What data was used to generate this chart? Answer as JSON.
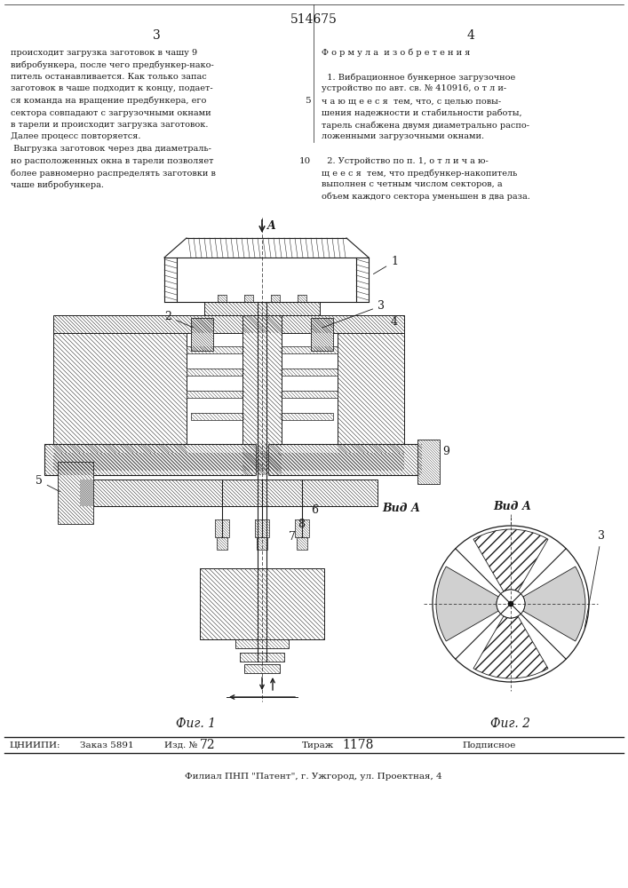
{
  "patent_number": "514675",
  "page_left": "3",
  "page_right": "4",
  "left_text": [
    "происходит загрузка заготовок в чашу 9",
    "вибробункера, после чего предбункер-нако-",
    "питель останавливается. Как только запас",
    "заготовок в чаше подходит к концу, подает-",
    "ся команда на вращение предбункера, его",
    "сектора совпадают с загрузочными окнами",
    "в тарели и происходит загрузка заготовок.",
    "Далее процесс повторяется.",
    " Выгрузка заготовок через два диаметраль-",
    "но расположенных окна в тарели позволяет",
    "более равномерно распределять заготовки в",
    "чаше вибробункера."
  ],
  "right_text_lines": [
    "Ф о р м у л а  и з о б р е т е н и я",
    "",
    "  1. Вибрационное бункерное загрузочное",
    "устройство по авт. св. № 410916, о т л и-",
    "ч а ю щ е е с я  тем, что, с целью повы-",
    "шения надежности и стабильности работы,",
    "тарель снабжена двумя диаметрально распо-",
    "ложенными загрузочными окнами.",
    "",
    "  2. Устройство по п. 1, о т л и ч а ю-",
    "щ е е с я  тем, что предбункер-накопитель",
    "выполнен с четным числом секторов, а",
    "объем каждого сектора уменьшен в два раза."
  ],
  "line_number_5": "5",
  "line_number_10": "10",
  "fig1_label": "Фиг. 1",
  "fig2_label": "Фиг. 2",
  "vid_a_label": "ВидА",
  "bottom_org": "ЦНИИПИ:",
  "bottom_order": "Заказ 5891",
  "bottom_ed": "Изд. №",
  "bottom_ed_num": "72",
  "bottom_tirazh": "Тираж",
  "bottom_tirazh_num": "1178",
  "bottom_podp": "Подписное",
  "bottom_line2": "Филиал ПНП \"Патент\", г. Ужгород, ул. Проектная, 4",
  "bg_color": "#ffffff",
  "text_color": "#1a1a1a",
  "hatch_color": "#333333"
}
